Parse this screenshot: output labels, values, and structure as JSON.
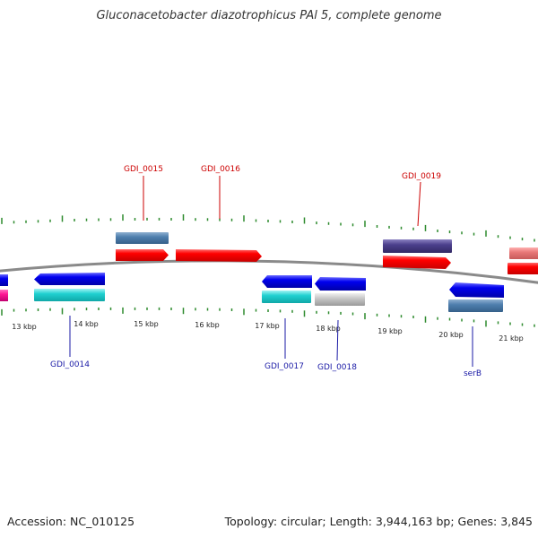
{
  "title": "Gluconacetobacter diazotrophicus PAl 5, complete genome",
  "footer": {
    "accession": "Accession: NC_010125",
    "summary": "Topology: circular; Length: 3,944,163 bp; Genes: 3,845"
  },
  "axis": {
    "tick_labels": [
      "13 kbp",
      "14 kbp",
      "15 kbp",
      "16 kbp",
      "17 kbp",
      "18 kbp",
      "19 kbp",
      "20 kbp",
      "21 kbp"
    ]
  },
  "genes": [
    {
      "id": "GDI_0015",
      "strand": "forward"
    },
    {
      "id": "GDI_0016",
      "strand": "forward"
    },
    {
      "id": "GDI_0019",
      "strand": "forward"
    },
    {
      "id": "GDI_0014",
      "strand": "reverse"
    },
    {
      "id": "GDI_0017",
      "strand": "reverse"
    },
    {
      "id": "GDI_0018",
      "strand": "reverse"
    },
    {
      "id": "serB",
      "strand": "reverse"
    }
  ],
  "colors": {
    "forward_label": "#cc0000",
    "reverse_label": "#1a1aa6",
    "tick": "#2e8b2e",
    "backbone": "#888888"
  }
}
